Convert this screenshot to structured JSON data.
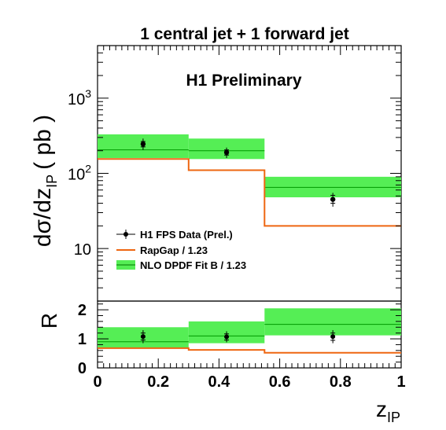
{
  "title": "1 central jet + 1 forward jet",
  "watermark": "H1 Preliminary",
  "colors": {
    "band": "#55ee55",
    "band_line": "#009900",
    "rapgap": "#ee6611",
    "data": "#000000",
    "axis": "#000000"
  },
  "chart_data": [
    {
      "name": "cross-section",
      "type": "step",
      "log_y": true,
      "xlim": [
        0,
        1
      ],
      "ylim": [
        2,
        5000
      ],
      "ylabel_main": "dσ/dz",
      "ylabel_sub": "IP",
      "ylabel_unit": "( pb )",
      "ytick_labels": [
        {
          "value": 10,
          "base": "10",
          "exp": ""
        },
        {
          "value": 100,
          "base": "10",
          "exp": "2"
        },
        {
          "value": 1000,
          "base": "10",
          "exp": "3"
        }
      ],
      "bins": [
        [
          0,
          0.3
        ],
        [
          0.3,
          0.55
        ],
        [
          0.55,
          1.0
        ]
      ],
      "nlo": {
        "name": "NLO DPDF Fit B / 1.23",
        "central": [
          205,
          200,
          65
        ],
        "low": [
          160,
          155,
          48
        ],
        "high": [
          330,
          290,
          90
        ]
      },
      "rapgap": {
        "name": "RapGap / 1.23",
        "values": [
          155,
          110,
          20
        ]
      },
      "data": {
        "name": "H1 FPS Data (Prel.)",
        "x": [
          0.15,
          0.425,
          0.775
        ],
        "y": [
          245,
          190,
          45
        ],
        "stat": [
          [
            225,
            265
          ],
          [
            175,
            205
          ],
          [
            40,
            51
          ]
        ],
        "total": [
          [
            205,
            290
          ],
          [
            160,
            220
          ],
          [
            36,
            55
          ]
        ]
      },
      "legend_position": "bottom-left"
    },
    {
      "name": "ratio",
      "type": "step",
      "ylabel": "R",
      "xlim": [
        0,
        1
      ],
      "ylim": [
        0,
        2.3
      ],
      "yticks": [
        "0",
        "1",
        "2"
      ],
      "xticks": [
        "0",
        "0.2",
        "0.4",
        "0.6",
        "0.8",
        "1"
      ],
      "xlabel_main": "z",
      "xlabel_sub": "IP",
      "bins": [
        [
          0,
          0.3
        ],
        [
          0.3,
          0.55
        ],
        [
          0.55,
          1.0
        ]
      ],
      "nlo": {
        "central": [
          0.9,
          1.1,
          1.5
        ],
        "low": [
          0.68,
          0.85,
          1.12
        ],
        "high": [
          1.4,
          1.6,
          2.05
        ]
      },
      "rapgap": {
        "values": [
          0.68,
          0.62,
          0.52
        ]
      },
      "data": {
        "x": [
          0.15,
          0.425,
          0.775
        ],
        "y": [
          1.08,
          1.07,
          1.08
        ],
        "stat": [
          [
            0.96,
            1.2
          ],
          [
            0.96,
            1.17
          ],
          [
            0.95,
            1.2
          ]
        ],
        "total": [
          [
            0.85,
            1.3
          ],
          [
            0.88,
            1.26
          ],
          [
            0.85,
            1.3
          ]
        ]
      }
    }
  ]
}
